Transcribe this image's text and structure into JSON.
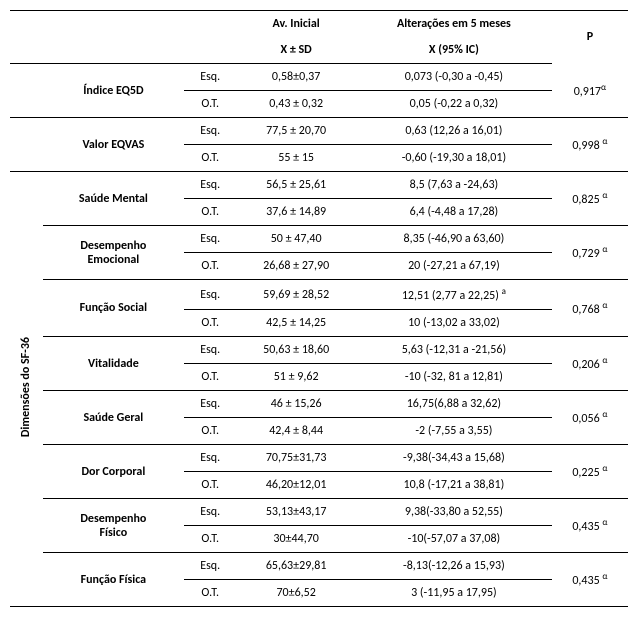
{
  "headers": {
    "av_inicial": "Av. Inicial",
    "alteracoes": "Alterações em 5 meses",
    "p": "P",
    "xsd": "X ± SD",
    "xic": "X (95% IC)"
  },
  "sf36_label": "Dimensões do SF-36",
  "sup_alpha": "α",
  "sup_a": "a",
  "rows": {
    "eq5d": {
      "name": "Índice EQ5D",
      "esq": {
        "grp": "Esq.",
        "xsd": "0,58±0,37",
        "xic": "0,073 (-0,30 a -0,45)"
      },
      "ot": {
        "grp": "O.T.",
        "xsd": "0,43 ± 0,32",
        "xic": "0,05 (-0,22 a 0,32)"
      },
      "p": "0,917"
    },
    "eqvas": {
      "name": "Valor EQVAS",
      "esq": {
        "grp": "Esq.",
        "xsd": "77,5 ± 20,70",
        "xic": "0,63 (12,26 a 16,01)"
      },
      "ot": {
        "grp": "O.T.",
        "xsd": "55 ± 15",
        "xic": "-0,60 (-19,30 a 18,01)"
      },
      "p": "0,998"
    },
    "saude_mental": {
      "name": "Saúde Mental",
      "esq": {
        "grp": "Esq.",
        "xsd": "56,5 ± 25,61",
        "xic": "8,5 (7,63 a -24,63)"
      },
      "ot": {
        "grp": "O.T.",
        "xsd": "37,6 ± 14,89",
        "xic": "6,4 (-4,48 a 17,28)"
      },
      "p": "0,825"
    },
    "des_emocional": {
      "name_l1": "Desempenho",
      "name_l2": "Emocional",
      "esq": {
        "grp": "Esq.",
        "xsd": "50 ± 47,40",
        "xic": "8,35 (-46,90 a 63,60)"
      },
      "ot": {
        "grp": "O.T.",
        "xsd": "26,68 ± 27,90",
        "xic": "20 (-27,21 a 67,19)"
      },
      "p": "0,729"
    },
    "funcao_social": {
      "name": "Função Social",
      "esq": {
        "grp": "Esq.",
        "xsd": "59,69 ± 28,52",
        "xic": "12,51 (2,77 a 22,25)"
      },
      "ot": {
        "grp": "O.T.",
        "xsd": "42,5 ± 14,25",
        "xic": "10 (-13,02 a 33,02)"
      },
      "p": "0,768"
    },
    "vitalidade": {
      "name": "Vitalidade",
      "esq": {
        "grp": "Esq.",
        "xsd": "50,63 ± 18,60",
        "xic": "5,63 (-12,31 a -21,56)"
      },
      "ot": {
        "grp": "O.T.",
        "xsd": "51 ± 9,62",
        "xic": "-10 (-32, 81 a 12,81)"
      },
      "p": "0,206"
    },
    "saude_geral": {
      "name": "Saúde Geral",
      "esq": {
        "grp": "Esq.",
        "xsd": "46 ± 15,26",
        "xic": "16,75(6,88 a 32,62)"
      },
      "ot": {
        "grp": "O.T.",
        "xsd": "42,4 ± 8,44",
        "xic": "-2 (-7,55 a 3,55)"
      },
      "p": "0,056"
    },
    "dor_corporal": {
      "name": "Dor Corporal",
      "esq": {
        "grp": "Esq.",
        "xsd": "70,75±31,73",
        "xic": "-9,38(-34,43 a 15,68)"
      },
      "ot": {
        "grp": "O.T.",
        "xsd": "46,20±12,01",
        "xic": "10,8 (-17,21 a 38,81)"
      },
      "p": "0,225"
    },
    "des_fisico": {
      "name_l1": "Desempenho",
      "name_l2": "Físico",
      "esq": {
        "grp": "Esq.",
        "xsd": "53,13±43,17",
        "xic": "9,38(-33,80 a 52,55)"
      },
      "ot": {
        "grp": "O.T.",
        "xsd": "30±44,70",
        "xic": "-10(-57,07 a 37,08)"
      },
      "p": "0,435"
    },
    "funcao_fisica": {
      "name": "Função Física",
      "esq": {
        "grp": "Esq.",
        "xsd": "65,63±29,81",
        "xic": "-8,13(-12,26 a 15,93)"
      },
      "ot": {
        "grp": "O.T.",
        "xsd": "70±6,52",
        "xic": "3 (-11,95 a 17,95)"
      },
      "p": "0,435"
    }
  }
}
